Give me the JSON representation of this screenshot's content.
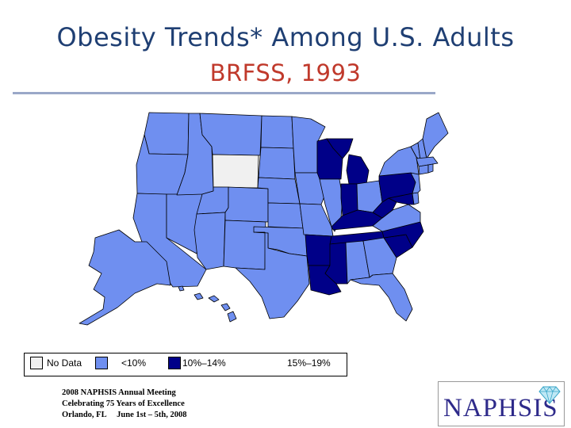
{
  "slide": {
    "title": "Obesity Trends* Among U.S. Adults",
    "subtitle": "BRFSS, 1993"
  },
  "legend": [
    {
      "label": "No Data",
      "color": "#f0f0f0"
    },
    {
      "label": "<10%",
      "color": "#6f8ff0"
    },
    {
      "label": "10%–14%",
      "color": "#000088"
    },
    {
      "label": "15%–19%",
      "color": ""
    }
  ],
  "footer": {
    "lines": [
      "2008 NAPHSIS Annual Meeting",
      "Celebrating 75 Years of Excellence",
      "Orlando, FL     June 1st – 5th, 2008"
    ]
  },
  "logo": {
    "text": "NAPHSIS",
    "icon": "diamond-icon"
  },
  "map": {
    "colors": {
      "no_data": "#f0f0f0",
      "lt10": "#6f8ff0",
      "r10_14": "#000088",
      "border": "#000000"
    },
    "states": [
      {
        "id": "WA",
        "cls": "lt10"
      },
      {
        "id": "OR",
        "cls": "lt10"
      },
      {
        "id": "CA",
        "cls": "lt10"
      },
      {
        "id": "ID",
        "cls": "lt10"
      },
      {
        "id": "NV",
        "cls": "lt10"
      },
      {
        "id": "MT",
        "cls": "lt10"
      },
      {
        "id": "WY",
        "cls": "no_data"
      },
      {
        "id": "UT",
        "cls": "lt10"
      },
      {
        "id": "AZ",
        "cls": "lt10"
      },
      {
        "id": "CO",
        "cls": "lt10"
      },
      {
        "id": "NM",
        "cls": "lt10"
      },
      {
        "id": "ND",
        "cls": "lt10"
      },
      {
        "id": "SD",
        "cls": "lt10"
      },
      {
        "id": "NE",
        "cls": "lt10"
      },
      {
        "id": "KS",
        "cls": "lt10"
      },
      {
        "id": "OK",
        "cls": "lt10"
      },
      {
        "id": "TX",
        "cls": "lt10"
      },
      {
        "id": "MN",
        "cls": "lt10"
      },
      {
        "id": "IA",
        "cls": "lt10"
      },
      {
        "id": "MO",
        "cls": "lt10"
      },
      {
        "id": "AR",
        "cls": "r10_14"
      },
      {
        "id": "LA",
        "cls": "r10_14"
      },
      {
        "id": "WI",
        "cls": "r10_14"
      },
      {
        "id": "IL",
        "cls": "lt10"
      },
      {
        "id": "MI",
        "cls": "r10_14"
      },
      {
        "id": "IN",
        "cls": "r10_14"
      },
      {
        "id": "OH",
        "cls": "lt10"
      },
      {
        "id": "KY",
        "cls": "r10_14"
      },
      {
        "id": "TN",
        "cls": "r10_14"
      },
      {
        "id": "MS",
        "cls": "r10_14"
      },
      {
        "id": "AL",
        "cls": "lt10"
      },
      {
        "id": "GA",
        "cls": "lt10"
      },
      {
        "id": "FL",
        "cls": "lt10"
      },
      {
        "id": "SC",
        "cls": "r10_14"
      },
      {
        "id": "NC",
        "cls": "r10_14"
      },
      {
        "id": "VA",
        "cls": "lt10"
      },
      {
        "id": "WV",
        "cls": "r10_14"
      },
      {
        "id": "PA",
        "cls": "r10_14"
      },
      {
        "id": "NY",
        "cls": "lt10"
      },
      {
        "id": "VT",
        "cls": "lt10"
      },
      {
        "id": "NH",
        "cls": "lt10"
      },
      {
        "id": "ME",
        "cls": "lt10"
      },
      {
        "id": "MA",
        "cls": "lt10"
      },
      {
        "id": "CT",
        "cls": "lt10"
      },
      {
        "id": "RI",
        "cls": "lt10"
      },
      {
        "id": "NJ",
        "cls": "lt10"
      },
      {
        "id": "DE",
        "cls": "lt10"
      },
      {
        "id": "MD",
        "cls": "r10_14"
      },
      {
        "id": "AK",
        "cls": "lt10"
      },
      {
        "id": "HI",
        "cls": "lt10"
      }
    ]
  }
}
